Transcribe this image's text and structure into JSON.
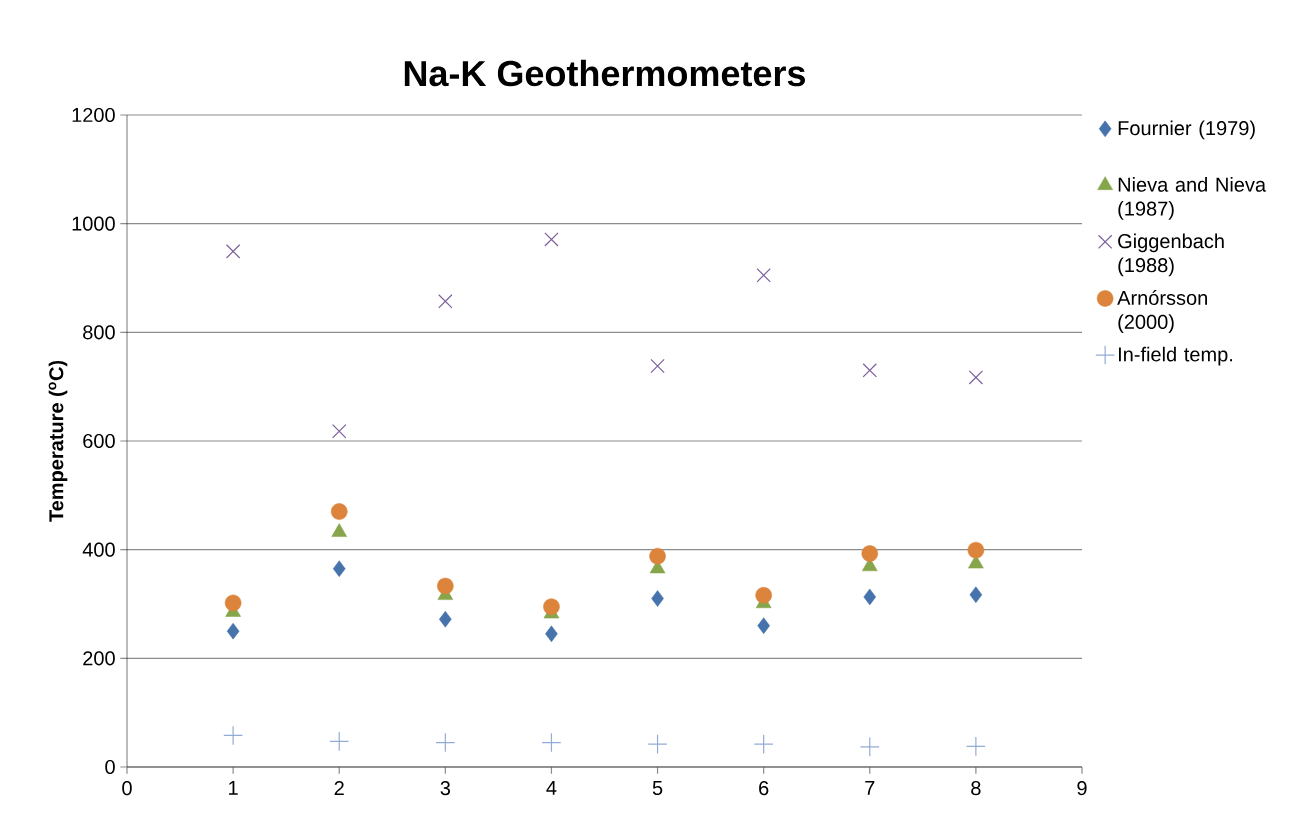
{
  "chart_data": {
    "type": "scatter",
    "title": "Na-K Geothermometers",
    "ylabel": "Temperature ($^{o}$C)",
    "x": [
      1,
      2,
      3,
      4,
      5,
      6,
      7,
      8
    ],
    "series": [
      {
        "name": "Fournier (1979)",
        "color": "#4673ac",
        "marker": "diamond",
        "values": [
          250,
          365,
          272,
          245,
          310,
          260,
          313,
          317
        ]
      },
      {
        "name": "Nieva and Nieva (1987)",
        "color": "#87a54b",
        "marker": "triangle",
        "values": [
          285,
          432,
          316,
          282,
          365,
          301,
          369,
          374
        ]
      },
      {
        "name": "Giggenbach (1988)",
        "color": "#7b5f9c",
        "marker": "cross",
        "values": [
          949,
          618,
          857,
          971,
          738,
          905,
          730,
          717
        ]
      },
      {
        "name": "Arnórsson (2000)",
        "color": "#dc843c",
        "marker": "circle",
        "values": [
          302,
          470,
          333,
          295,
          388,
          316,
          393,
          399
        ]
      },
      {
        "name": "In-field temp.",
        "color": "#93acd6",
        "marker": "plus",
        "values": [
          58,
          47,
          45,
          45,
          42,
          42,
          37,
          38
        ]
      }
    ],
    "xlim": [
      0,
      9
    ],
    "xticks": [
      0,
      1,
      2,
      3,
      4,
      5,
      6,
      7,
      8,
      9
    ],
    "ylim": [
      0,
      1200
    ],
    "yticks": [
      0,
      200,
      400,
      600,
      800,
      1000,
      1200
    ],
    "grid": "y",
    "legend": "right"
  }
}
